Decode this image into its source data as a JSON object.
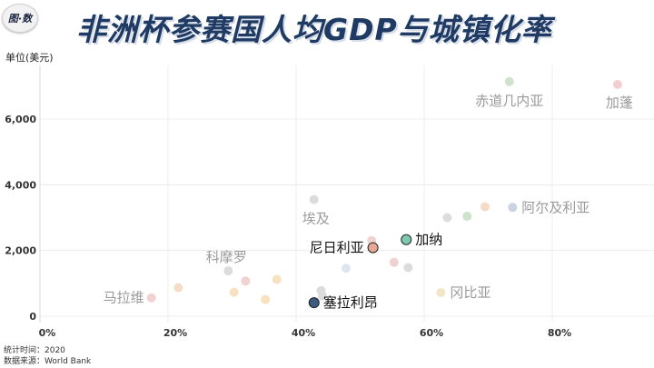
{
  "header": {
    "logo_text": "图·数",
    "title": "非洲杯参赛国人均GDP与城镇化率"
  },
  "footer": {
    "time_label": "统计时间：2020",
    "source_label": "数据来源：World Bank"
  },
  "chart_data": {
    "type": "scatter",
    "title": "非洲杯参赛国人均GDP与城镇化率",
    "ylabel": "单位(美元)",
    "xlabel": "",
    "xlim": [
      0,
      0.95
    ],
    "ylim": [
      -200,
      7500
    ],
    "x_ticks": [
      0,
      0.2,
      0.4,
      0.6,
      0.8
    ],
    "x_tick_labels": [
      "0%",
      "20%",
      "40%",
      "60%",
      "80%"
    ],
    "y_ticks": [
      0,
      2000,
      4000,
      6000
    ],
    "y_tick_labels": [
      "0",
      "2,000",
      "4,000",
      "6,000"
    ],
    "grid": true,
    "points": [
      {
        "name": "加纳",
        "x": 0.572,
        "y": 2330,
        "color": "#7fc9b0",
        "style": "highlight",
        "labeled": true
      },
      {
        "name": "尼日利亚",
        "x": 0.52,
        "y": 2085,
        "color": "#e7a896",
        "style": "highlight",
        "labeled": true
      },
      {
        "name": "塞拉利昂",
        "x": 0.428,
        "y": 410,
        "color": "#3d5a80",
        "style": "highlight",
        "labeled": true
      },
      {
        "name": "加蓬",
        "x": 0.902,
        "y": 7050,
        "color": "#f4cfd0",
        "style": "muted",
        "labeled": true
      },
      {
        "name": "赤道几内亚",
        "x": 0.733,
        "y": 7140,
        "color": "#cfe3cc",
        "style": "muted",
        "labeled": true
      },
      {
        "name": "阿尔及利亚",
        "x": 0.738,
        "y": 3310,
        "color": "#c9d3e2",
        "style": "muted",
        "labeled": true
      },
      {
        "name": "埃及",
        "x": 0.428,
        "y": 3550,
        "color": "#dcdcdc",
        "style": "muted",
        "labeled": true
      },
      {
        "name": "科摩罗",
        "x": 0.294,
        "y": 1380,
        "color": "#dcdcdc",
        "style": "muted",
        "labeled": true
      },
      {
        "name": "马拉维",
        "x": 0.174,
        "y": 560,
        "color": "#f0d2d0",
        "style": "muted",
        "labeled": true
      },
      {
        "name": "冈比亚",
        "x": 0.626,
        "y": 720,
        "color": "#f3e6c8",
        "style": "muted",
        "labeled": true
      },
      {
        "name": "",
        "x": 0.695,
        "y": 3330,
        "color": "#f6dcc6",
        "style": "muted",
        "labeled": false
      },
      {
        "name": "",
        "x": 0.667,
        "y": 3040,
        "color": "#cfe3cc",
        "style": "muted",
        "labeled": false
      },
      {
        "name": "",
        "x": 0.636,
        "y": 3000,
        "color": "#dcdcdc",
        "style": "muted",
        "labeled": false
      },
      {
        "name": "",
        "x": 0.518,
        "y": 2300,
        "color": "#f0d2d0",
        "style": "muted",
        "labeled": false
      },
      {
        "name": "",
        "x": 0.553,
        "y": 1640,
        "color": "#f0d2d0",
        "style": "muted",
        "labeled": false
      },
      {
        "name": "",
        "x": 0.575,
        "y": 1480,
        "color": "#dcdcdc",
        "style": "muted",
        "labeled": false
      },
      {
        "name": "",
        "x": 0.478,
        "y": 1460,
        "color": "#dde6f0",
        "style": "muted",
        "labeled": false
      },
      {
        "name": "",
        "x": 0.439,
        "y": 780,
        "color": "#dcdcdc",
        "style": "muted",
        "labeled": false
      },
      {
        "name": "",
        "x": 0.441,
        "y": 620,
        "color": "#dcdcdc",
        "style": "muted",
        "labeled": false
      },
      {
        "name": "",
        "x": 0.37,
        "y": 1120,
        "color": "#f6e2c0",
        "style": "muted",
        "labeled": false
      },
      {
        "name": "",
        "x": 0.321,
        "y": 1070,
        "color": "#f0d2d0",
        "style": "muted",
        "labeled": false
      },
      {
        "name": "",
        "x": 0.303,
        "y": 730,
        "color": "#f6e2c0",
        "style": "muted",
        "labeled": false
      },
      {
        "name": "",
        "x": 0.352,
        "y": 510,
        "color": "#f6e2c0",
        "style": "muted",
        "labeled": false
      },
      {
        "name": "",
        "x": 0.216,
        "y": 870,
        "color": "#f6dcc6",
        "style": "muted",
        "labeled": false
      }
    ]
  }
}
